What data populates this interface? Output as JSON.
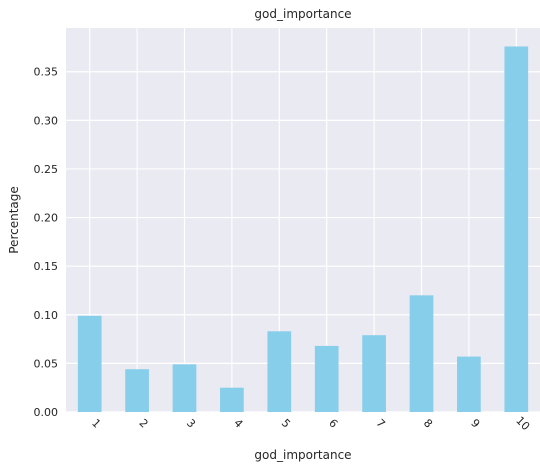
{
  "chart_data": {
    "type": "bar",
    "title": "god_importance",
    "xlabel": "god_importance",
    "ylabel": "Percentage",
    "categories": [
      "1",
      "2",
      "3",
      "4",
      "5",
      "6",
      "7",
      "8",
      "9",
      "10"
    ],
    "values": [
      0.099,
      0.044,
      0.049,
      0.025,
      0.083,
      0.068,
      0.079,
      0.12,
      0.057,
      0.376
    ],
    "ylim": [
      0,
      0.395
    ],
    "yticks": [
      "0.00",
      "0.05",
      "0.10",
      "0.15",
      "0.20",
      "0.25",
      "0.30",
      "0.35"
    ],
    "ytick_values": [
      0,
      0.05,
      0.1,
      0.15,
      0.2,
      0.25,
      0.3,
      0.35
    ],
    "grid": true,
    "bar_color": "#87CEEB",
    "background_color": "#EAEAF2",
    "grid_color": "#FFFFFF",
    "xtick_rotation_deg": 45
  }
}
